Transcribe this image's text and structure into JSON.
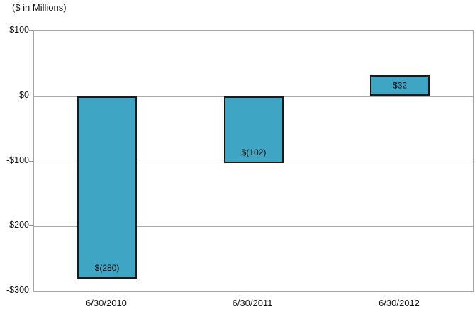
{
  "chart_data": {
    "type": "bar",
    "title": "($ in Millions)",
    "categories": [
      "6/30/2010",
      "6/30/2011",
      "6/30/2012"
    ],
    "values": [
      -280,
      -102,
      32
    ],
    "data_labels": [
      "$(280)",
      "$(102)",
      "$32"
    ],
    "xlabel": "",
    "ylabel": "",
    "ylim": [
      -300,
      100
    ],
    "ytick_step": 100,
    "ytick_labels": [
      "$100",
      "$0",
      "-$100",
      "-$200",
      "-$300"
    ],
    "grid": true,
    "legend": false,
    "colors": {
      "bar_fill": "#3fa5c4",
      "bar_border": "#1a1a1a",
      "gridline": "#a8a8a8",
      "plot_border": "#a3a3a3",
      "text": "#151515"
    }
  }
}
